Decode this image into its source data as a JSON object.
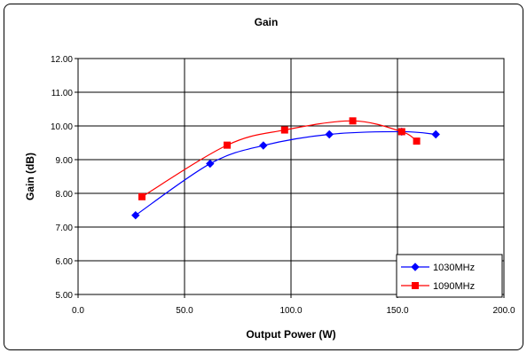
{
  "chart_data": {
    "type": "line",
    "title": "Gain",
    "xlabel": "Output Power (W)",
    "ylabel": "Gain (dB)",
    "xlim": [
      0,
      200
    ],
    "ylim": [
      5,
      12
    ],
    "x_ticks": [
      "0.0",
      "50.0",
      "100.0",
      "150.0",
      "200.0"
    ],
    "y_ticks": [
      "5.00",
      "6.00",
      "7.00",
      "8.00",
      "9.00",
      "10.00",
      "11.00",
      "12.00"
    ],
    "grid": true,
    "smoothed": true,
    "legend_position": "bottom-right",
    "series": [
      {
        "name": "1030MHz",
        "color": "#0000ff",
        "marker": "diamond",
        "points": [
          [
            27,
            7.35
          ],
          [
            62,
            8.88
          ],
          [
            87,
            9.42
          ],
          [
            118,
            9.75
          ],
          [
            152,
            9.83
          ],
          [
            168,
            9.75
          ]
        ]
      },
      {
        "name": "1090MHz",
        "color": "#ff0000",
        "marker": "square",
        "points": [
          [
            30,
            7.9
          ],
          [
            70,
            9.43
          ],
          [
            97,
            9.88
          ],
          [
            129,
            10.15
          ],
          [
            152,
            9.83
          ],
          [
            159,
            9.55
          ]
        ]
      }
    ]
  }
}
